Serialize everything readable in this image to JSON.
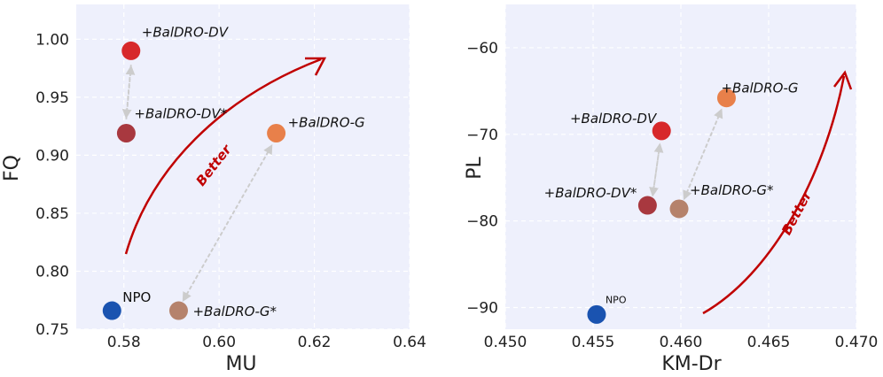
{
  "chart_data": [
    {
      "type": "scatter",
      "xlabel": "MU",
      "ylabel": "FQ",
      "xlim": [
        0.57,
        0.64
      ],
      "ylim": [
        0.75,
        1.03
      ],
      "xticks": [
        "0.58",
        "0.60",
        "0.62",
        "0.64"
      ],
      "yticks": [
        "0.75",
        "0.80",
        "0.85",
        "0.90",
        "0.95",
        "1.00"
      ],
      "points": [
        {
          "label": "NPO",
          "x": 0.5775,
          "y": 0.766,
          "color": "#1a53b0",
          "label_style": "normal"
        },
        {
          "label": "+BalDRO-G*",
          "x": 0.5915,
          "y": 0.766,
          "color": "#b5826c",
          "label_style": "italic"
        },
        {
          "label": "+BalDRO-G",
          "x": 0.612,
          "y": 0.919,
          "color": "#e8804a",
          "label_style": "italic"
        },
        {
          "label": "+BalDRO-DV*",
          "x": 0.5805,
          "y": 0.919,
          "color": "#a8383f",
          "label_style": "italic"
        },
        {
          "label": "+BalDRO-DV",
          "x": 0.5815,
          "y": 0.99,
          "color": "#d7282a",
          "label_style": "italic"
        }
      ],
      "arrows": [
        {
          "from": [
            0.5815,
            0.978
          ],
          "to": [
            0.5805,
            0.933
          ]
        },
        {
          "from": [
            0.5805,
            0.931
          ],
          "to": [
            0.5815,
            0.976
          ]
        },
        {
          "from": [
            0.5925,
            0.775
          ],
          "to": [
            0.611,
            0.908
          ]
        },
        {
          "from": [
            0.611,
            0.908
          ],
          "to": [
            0.5925,
            0.775
          ]
        }
      ],
      "annotation": "Better"
    },
    {
      "type": "scatter",
      "xlabel": "KM-Dr",
      "ylabel": "PL",
      "xlim": [
        0.45,
        0.47
      ],
      "ylim": [
        -92.5,
        -55
      ],
      "xticks": [
        "0.450",
        "0.455",
        "0.460",
        "0.465",
        "0.470"
      ],
      "yticks": [
        "−90",
        "−80",
        "−70",
        "−60"
      ],
      "ytick_values": [
        -90,
        -80,
        -70,
        -60
      ],
      "points": [
        {
          "label": "NPO",
          "x": 0.4552,
          "y": -90.8,
          "color": "#1a53b0",
          "label_style": "normal"
        },
        {
          "label": "+BalDRO-DV*",
          "x": 0.4581,
          "y": -78.2,
          "color": "#a8383f",
          "label_style": "italic"
        },
        {
          "label": "+BalDRO-G*",
          "x": 0.4599,
          "y": -78.6,
          "color": "#b5826c",
          "label_style": "italic"
        },
        {
          "label": "+BalDRO-DV",
          "x": 0.4589,
          "y": -69.6,
          "color": "#d7282a",
          "label_style": "italic"
        },
        {
          "label": "+BalDRO-G",
          "x": 0.4626,
          "y": -65.8,
          "color": "#e8804a",
          "label_style": "italic"
        }
      ],
      "arrows": [
        {
          "from": [
            0.4584,
            -77.0
          ],
          "to": [
            0.4588,
            -71.2
          ]
        },
        {
          "from": [
            0.4588,
            -71.2
          ],
          "to": [
            0.4584,
            -77.0
          ]
        },
        {
          "from": [
            0.4602,
            -77.4
          ],
          "to": [
            0.4623,
            -67.2
          ]
        },
        {
          "from": [
            0.4623,
            -67.2
          ],
          "to": [
            0.4602,
            -77.4
          ]
        }
      ],
      "annotation": "Better"
    }
  ]
}
